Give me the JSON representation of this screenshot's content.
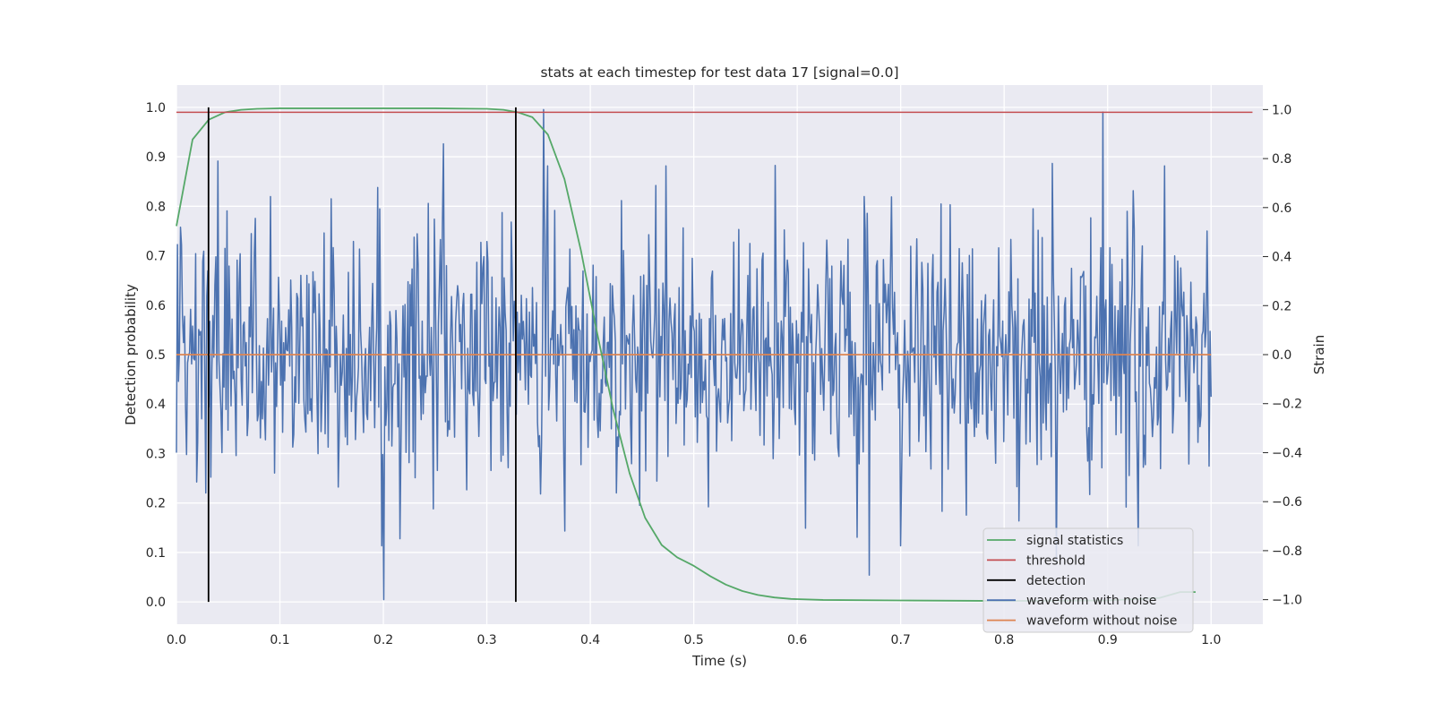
{
  "figure": {
    "background": "#ffffff"
  },
  "chart_data": {
    "type": "line",
    "title": "stats at each timestep for test data 17 [signal=0.0]",
    "xlabel": "Time (s)",
    "ylabel_left": "Detection probability",
    "ylabel_right": "Strain",
    "xlim": [
      0.0,
      1.05
    ],
    "ylim_left": [
      -0.045,
      1.045
    ],
    "ylim_right": [
      -1.1,
      1.1
    ],
    "x_ticks": [
      0.0,
      0.1,
      0.2,
      0.3,
      0.4,
      0.5,
      0.6,
      0.7,
      0.8,
      0.9,
      1.0
    ],
    "x_tick_labels": [
      "0.0",
      "0.1",
      "0.2",
      "0.3",
      "0.4",
      "0.5",
      "0.6",
      "0.7",
      "0.8",
      "0.9",
      "1.0"
    ],
    "y_left_ticks": [
      0.0,
      0.1,
      0.2,
      0.3,
      0.4,
      0.5,
      0.6,
      0.7,
      0.8,
      0.9,
      1.0
    ],
    "y_left_tick_labels": [
      "0.0",
      "0.1",
      "0.2",
      "0.3",
      "0.4",
      "0.5",
      "0.6",
      "0.7",
      "0.8",
      "0.9",
      "1.0"
    ],
    "y_right_ticks": [
      -1.0,
      -0.8,
      -0.6,
      -0.4,
      -0.2,
      0.0,
      0.2,
      0.4,
      0.6,
      0.8,
      1.0
    ],
    "y_right_tick_labels": [
      "−1.0",
      "−0.8",
      "−0.6",
      "−0.4",
      "−0.2",
      "0.0",
      "0.2",
      "0.4",
      "0.6",
      "0.8",
      "1.0"
    ],
    "grid": true,
    "plot_background": "#eaeaf2",
    "grid_color": "#ffffff",
    "legend_position": "lower-right",
    "series": [
      {
        "name": "signal statistics",
        "axis": "left",
        "color": "#55a868",
        "x": [
          0.0,
          0.0156,
          0.0312,
          0.0469,
          0.0625,
          0.078,
          0.1,
          0.15,
          0.2,
          0.25,
          0.3,
          0.316,
          0.33,
          0.344,
          0.359,
          0.375,
          0.391,
          0.406,
          0.422,
          0.438,
          0.453,
          0.469,
          0.484,
          0.5,
          0.516,
          0.531,
          0.547,
          0.562,
          0.578,
          0.594,
          0.625,
          0.7,
          0.8,
          0.9,
          0.95,
          0.97,
          0.985
        ],
        "y": [
          0.76,
          0.935,
          0.975,
          0.99,
          0.995,
          0.997,
          0.998,
          0.998,
          0.998,
          0.998,
          0.997,
          0.995,
          0.99,
          0.98,
          0.945,
          0.855,
          0.71,
          0.55,
          0.39,
          0.26,
          0.17,
          0.115,
          0.09,
          0.073,
          0.052,
          0.035,
          0.022,
          0.014,
          0.009,
          0.006,
          0.004,
          0.003,
          0.002,
          0.003,
          0.008,
          0.02,
          0.02
        ]
      },
      {
        "name": "threshold",
        "axis": "left",
        "color": "#c44e52",
        "x": [
          0.0,
          1.04
        ],
        "y": [
          0.99,
          0.99
        ]
      },
      {
        "name": "detection",
        "axis": "left",
        "color": "#000000",
        "type": "vlines",
        "x": [
          0.031,
          0.328
        ],
        "y_range": [
          0.0,
          1.0
        ]
      },
      {
        "name": "waveform with noise",
        "axis": "right",
        "color": "#4c72b0",
        "x_range": [
          0.0,
          1.0
        ],
        "n_points": 1024,
        "noise_std": 0.27,
        "peaks": [
          {
            "x": 0.0,
            "y": -0.4
          },
          {
            "x": 0.02,
            "y": -0.52
          },
          {
            "x": 0.033,
            "y": -0.5
          },
          {
            "x": 0.04,
            "y": 0.79
          },
          {
            "x": 0.2,
            "y": -1.0
          },
          {
            "x": 0.258,
            "y": 0.86
          },
          {
            "x": 0.355,
            "y": 1.0
          },
          {
            "x": 0.375,
            "y": -0.72
          },
          {
            "x": 0.473,
            "y": 0.77
          },
          {
            "x": 0.67,
            "y": -0.9
          },
          {
            "x": 0.85,
            "y": -0.85
          },
          {
            "x": 0.895,
            "y": 0.99
          },
          {
            "x": 0.93,
            "y": -0.78
          },
          {
            "x": 0.955,
            "y": 0.77
          }
        ]
      },
      {
        "name": "waveform without noise",
        "axis": "right",
        "color": "#dd8452",
        "x": [
          0.0,
          1.0
        ],
        "y": [
          0.0,
          0.0
        ]
      }
    ]
  }
}
